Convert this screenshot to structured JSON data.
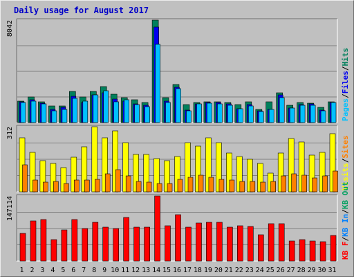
{
  "chart_data": {
    "type": "bar",
    "title": "Daily usage for August 2017",
    "days": [
      "1",
      "2",
      "3",
      "4",
      "5",
      "6",
      "7",
      "8",
      "9",
      "10",
      "11",
      "12",
      "13",
      "14",
      "15",
      "16",
      "17",
      "18",
      "19",
      "20",
      "21",
      "22",
      "23",
      "24",
      "25",
      "26",
      "27",
      "28",
      "29",
      "30",
      "31"
    ],
    "weekend_days": [
      "5",
      "6",
      "12",
      "13",
      "19",
      "20",
      "26",
      "27"
    ],
    "colors": {
      "background": "#c0c0c0",
      "hits": "#00805c",
      "files": "#0000f0",
      "pages": "#00c0ff",
      "visits": "#ffff00",
      "sites": "#ff8000",
      "kbin": "#0080ff",
      "kbout": "#00a060",
      "kbf": "#ff0000",
      "weekday_label": "#000000",
      "weekend_label": "#00805c",
      "title": "#0000c8"
    },
    "panels": [
      {
        "id": "hits-files-pages",
        "ymax_label": "8042",
        "ymax": 8042,
        "legend": [
          "Pages",
          "/",
          "Files",
          "/",
          "Hits"
        ],
        "legend_colors": [
          "#00c0ff",
          "#000000",
          "#0000f0",
          "#000000",
          "#00805c"
        ],
        "series": [
          {
            "name": "Hits",
            "values": [
              1700,
              2000,
              1650,
              1300,
              1300,
              2450,
              2000,
              2450,
              2800,
              2250,
              1950,
              1800,
              1550,
              8042,
              1950,
              3000,
              1400,
              1600,
              1650,
              1650,
              1600,
              1400,
              1650,
              1050,
              1650,
              2350,
              1350,
              1550,
              1500,
              1200,
              1650
            ]
          },
          {
            "name": "Files",
            "values": [
              1650,
              1800,
              1500,
              1050,
              1200,
              2050,
              1550,
              2150,
              2350,
              1850,
              1700,
              1450,
              1350,
              7500,
              1700,
              2750,
              1000,
              1450,
              1550,
              1600,
              1450,
              1100,
              1400,
              950,
              1050,
              2150,
              1150,
              1400,
              1450,
              1000,
              1550
            ]
          },
          {
            "name": "Pages",
            "values": [
              1550,
              1700,
              1450,
              950,
              1050,
              1900,
              1700,
              2150,
              2500,
              1650,
              1800,
              1400,
              1250,
              6150,
              1600,
              2650,
              950,
              1450,
              1500,
              1450,
              1350,
              1100,
              1300,
              850,
              1050,
              1950,
              1150,
              1350,
              1350,
              950,
              1550
            ]
          }
        ]
      },
      {
        "id": "visits-sites",
        "ymax_label": "312",
        "ymax": 312,
        "legend": [
          "Visits",
          "/",
          "Sites"
        ],
        "legend_colors": [
          "#ffff00",
          "#000000",
          "#ff8000"
        ],
        "series": [
          {
            "name": "Visits",
            "values": [
              260,
              190,
              150,
              135,
              115,
              165,
              215,
              312,
              260,
              292,
              235,
              180,
              180,
              160,
              150,
              170,
              235,
              220,
              260,
              235,
              185,
              170,
              155,
              135,
              90,
              185,
              255,
              238,
              175,
              190,
              280
            ]
          },
          {
            "name": "Sites",
            "values": [
              130,
              55,
              45,
              50,
              40,
              55,
              55,
              60,
              85,
              105,
              75,
              50,
              45,
              40,
              40,
              60,
              70,
              80,
              70,
              60,
              55,
              50,
              50,
              45,
              50,
              75,
              85,
              80,
              65,
              75,
              100
            ]
          }
        ]
      },
      {
        "id": "kbf",
        "ymax_label": "147114",
        "ymax": 147114,
        "legend": [
          "KB F",
          "/",
          "KB In",
          "/",
          "KB Out"
        ],
        "legend_colors": [
          "#ff0000",
          "#000000",
          "#0080ff",
          "#000000",
          "#00a060"
        ],
        "series": [
          {
            "name": "KB F",
            "values": [
              62000,
              90000,
              94000,
              48000,
              70000,
              94000,
              74000,
              88000,
              76000,
              74000,
              98000,
              76000,
              76000,
              147114,
              80000,
              105000,
              76000,
              86000,
              88000,
              88000,
              76000,
              80000,
              78000,
              60000,
              84000,
              84000,
              46000,
              48000,
              46000,
              44000,
              58000
            ]
          }
        ]
      }
    ]
  }
}
